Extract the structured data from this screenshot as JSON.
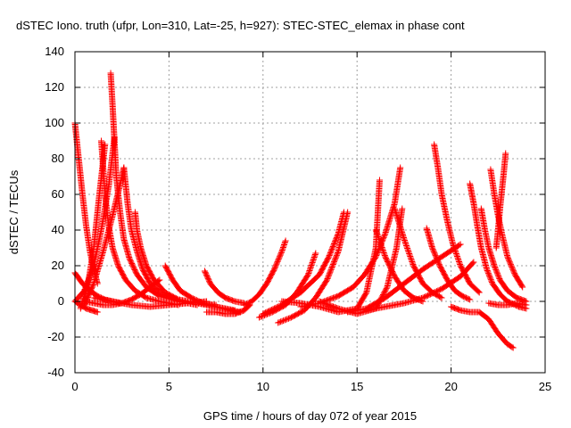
{
  "chart_data": {
    "type": "scatter",
    "title": "dSTEC Iono. truth (ufpr, Lon=310, Lat=-25, h=927): STEC-STEC_elemax in phase cont",
    "xlabel": "GPS time / hours of day 072 of year 2015",
    "ylabel": "dSTEC  / TECUs",
    "xlim": [
      0,
      25
    ],
    "ylim": [
      -40,
      140
    ],
    "xticks": [
      0,
      5,
      10,
      15,
      20,
      25
    ],
    "yticks": [
      -40,
      -20,
      0,
      20,
      40,
      60,
      80,
      100,
      120,
      140
    ],
    "grid": true,
    "legend": "none",
    "marker": "+",
    "color": "#ff0000",
    "series": [
      {
        "x": [
          0.0,
          0.2,
          0.4,
          0.6,
          0.8,
          1.0,
          1.2
        ],
        "y": [
          100,
          80,
          60,
          42,
          28,
          18,
          10
        ]
      },
      {
        "x": [
          0.0,
          0.3,
          0.6,
          0.9,
          1.2
        ],
        "y": [
          0,
          -2,
          -4,
          -5,
          -6
        ]
      },
      {
        "x": [
          0.0,
          0.4,
          0.8,
          1.2,
          1.6,
          2.0,
          2.4
        ],
        "y": [
          16,
          10,
          6,
          3,
          1,
          0,
          -1
        ]
      },
      {
        "x": [
          0.0,
          0.5,
          1.0,
          1.4,
          1.8,
          2.1
        ],
        "y": [
          0,
          6,
          20,
          40,
          65,
          92
        ]
      },
      {
        "x": [
          0.3,
          0.7,
          1.0,
          1.3,
          1.6
        ],
        "y": [
          -4,
          10,
          30,
          60,
          88
        ]
      },
      {
        "x": [
          0.5,
          1.0,
          1.5,
          2.0,
          2.5,
          2.6
        ],
        "y": [
          -2,
          10,
          28,
          48,
          70,
          75
        ]
      },
      {
        "x": [
          1.4,
          1.6,
          1.8,
          2.0,
          2.3,
          2.7,
          3.2,
          3.8,
          4.5,
          5.5
        ],
        "y": [
          90,
          60,
          42,
          30,
          20,
          12,
          6,
          2,
          0,
          -2
        ]
      },
      {
        "x": [
          1.9,
          2.0,
          2.1,
          2.2,
          2.4,
          2.6,
          2.9,
          3.3,
          3.8,
          4.5,
          5.5,
          6.5
        ],
        "y": [
          128,
          110,
          90,
          70,
          50,
          35,
          24,
          15,
          8,
          3,
          0,
          -2
        ]
      },
      {
        "x": [
          2.6,
          2.8,
          3.0,
          3.3,
          3.6,
          4.0,
          4.6,
          5.5,
          6.5,
          7.5
        ],
        "y": [
          75,
          55,
          40,
          28,
          18,
          10,
          4,
          1,
          -1,
          -2
        ]
      },
      {
        "x": [
          3.2,
          3.3,
          3.5,
          3.8,
          4.2,
          4.8,
          5.5,
          6.5,
          7.5,
          8.5
        ],
        "y": [
          50,
          40,
          30,
          20,
          12,
          5,
          1,
          -1,
          -3,
          -5
        ]
      },
      {
        "x": [
          4.8,
          5.2,
          5.6,
          6.2,
          6.8,
          7.5,
          8.2,
          8.8
        ],
        "y": [
          20,
          12,
          6,
          2,
          -1,
          -3,
          -5,
          -6
        ]
      },
      {
        "x": [
          0.5,
          1.0,
          1.5,
          2.0,
          2.5,
          3.0,
          3.5,
          4.0,
          4.5
        ],
        "y": [
          0,
          -1,
          -2,
          -2,
          -1,
          1,
          4,
          8,
          12
        ]
      },
      {
        "x": [
          1.0,
          2.0,
          3.0,
          4.0,
          5.0,
          6.0,
          7.0
        ],
        "y": [
          2,
          0,
          -2,
          -3,
          -2,
          -1,
          0
        ]
      },
      {
        "x": [
          6.9,
          7.2,
          7.6,
          8.0,
          8.5,
          9.0
        ],
        "y": [
          17,
          10,
          5,
          2,
          0,
          -1
        ]
      },
      {
        "x": [
          7.0,
          7.5,
          8.0,
          8.5,
          9.0,
          9.3
        ],
        "y": [
          -6,
          -6,
          -7,
          -7,
          -5,
          -2
        ]
      },
      {
        "x": [
          9.0,
          9.4,
          9.8,
          10.2,
          10.6,
          11.0,
          11.2
        ],
        "y": [
          -2,
          0,
          4,
          10,
          18,
          28,
          34
        ]
      },
      {
        "x": [
          9.8,
          10.5,
          11.2,
          11.8,
          12.4,
          12.8
        ],
        "y": [
          -9,
          -6,
          -2,
          5,
          15,
          27
        ]
      },
      {
        "x": [
          10.0,
          11.0,
          12.0,
          13.0,
          13.5,
          14.0,
          14.3
        ],
        "y": [
          -7,
          -2,
          5,
          15,
          25,
          38,
          50
        ]
      },
      {
        "x": [
          10.8,
          11.5,
          12.2,
          12.8,
          13.4,
          14.0,
          14.5
        ],
        "y": [
          -12,
          -9,
          -5,
          2,
          12,
          28,
          50
        ]
      },
      {
        "x": [
          11.0,
          12.0,
          13.0,
          14.0,
          15.0,
          15.5,
          16.0,
          16.2
        ],
        "y": [
          0,
          -1,
          -3,
          -6,
          -4,
          5,
          30,
          68
        ]
      },
      {
        "x": [
          12.0,
          13.0,
          14.0,
          14.8,
          15.4,
          16.0,
          16.5,
          17.0,
          17.3
        ],
        "y": [
          -3,
          -1,
          3,
          8,
          15,
          25,
          38,
          55,
          75
        ]
      },
      {
        "x": [
          13.0,
          14.0,
          15.0,
          16.0,
          16.6,
          17.1,
          17.4
        ],
        "y": [
          0,
          -4,
          -7,
          -4,
          8,
          30,
          52
        ]
      },
      {
        "x": [
          14.5,
          15.5,
          16.5,
          17.5,
          18.5,
          19.5,
          20.5
        ],
        "y": [
          -6,
          -4,
          2,
          10,
          18,
          25,
          32
        ]
      },
      {
        "x": [
          16.0,
          16.5,
          17.0,
          17.5,
          18.0,
          18.5
        ],
        "y": [
          40,
          25,
          14,
          6,
          2,
          0
        ]
      },
      {
        "x": [
          17.0,
          17.5,
          18.0,
          18.5,
          19.0,
          19.5
        ],
        "y": [
          52,
          35,
          20,
          10,
          5,
          2
        ]
      },
      {
        "x": [
          18.7,
          19.0,
          19.4,
          19.8,
          20.2,
          20.6,
          21.0
        ],
        "y": [
          41,
          30,
          20,
          12,
          6,
          3,
          1
        ]
      },
      {
        "x": [
          19.1,
          19.3,
          19.5,
          19.8,
          20.1,
          20.5,
          21.0,
          21.5
        ],
        "y": [
          88,
          75,
          60,
          45,
          32,
          20,
          10,
          5
        ]
      },
      {
        "x": [
          15.5,
          16.5,
          17.5,
          18.5,
          19.5,
          20.5,
          21.2
        ],
        "y": [
          -5,
          -3,
          -1,
          2,
          7,
          14,
          22
        ]
      },
      {
        "x": [
          20.0,
          20.5,
          21.0,
          21.5,
          22.0,
          22.5,
          23.0,
          23.3
        ],
        "y": [
          -3,
          -5,
          -6,
          -6,
          -10,
          -18,
          -24,
          -26
        ]
      },
      {
        "x": [
          21.0,
          21.2,
          21.4,
          21.6,
          21.9,
          22.2,
          22.6,
          23.0,
          23.6,
          24.0
        ],
        "y": [
          66,
          55,
          42,
          30,
          18,
          10,
          4,
          0,
          -3,
          -4
        ]
      },
      {
        "x": [
          21.6,
          21.8,
          22.0,
          22.3,
          22.6,
          23.0,
          23.5,
          24.0
        ],
        "y": [
          52,
          40,
          30,
          20,
          12,
          6,
          2,
          0
        ]
      },
      {
        "x": [
          22.1,
          22.3,
          22.5,
          22.7,
          23.0,
          23.4,
          23.8
        ],
        "y": [
          74,
          60,
          48,
          38,
          25,
          15,
          8
        ]
      },
      {
        "x": [
          22.4,
          22.5,
          22.6,
          22.7,
          22.8,
          22.9
        ],
        "y": [
          30,
          40,
          52,
          62,
          72,
          83
        ]
      },
      {
        "x": [
          22.0,
          22.5,
          23.0,
          23.5,
          24.0
        ],
        "y": [
          -1,
          -2,
          -2,
          -1,
          -2
        ]
      }
    ]
  }
}
